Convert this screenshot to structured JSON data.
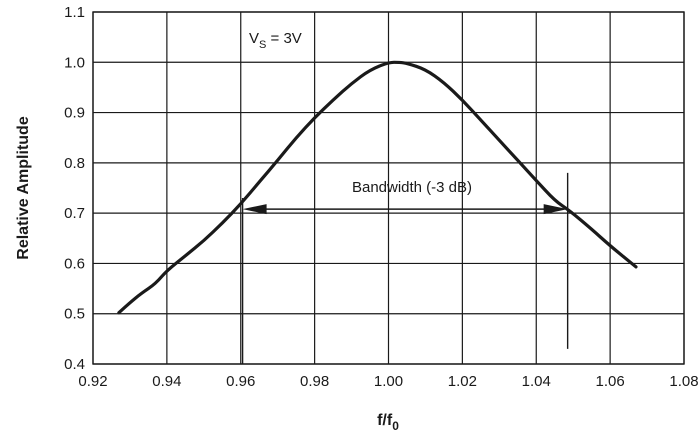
{
  "chart_data": {
    "type": "line",
    "title": "",
    "xlabel": "f/f",
    "xlabel_sub": "0",
    "ylabel": "Relative Amplitude",
    "xlim": [
      0.92,
      1.08
    ],
    "ylim": [
      0.4,
      1.1
    ],
    "x_ticks": [
      "0.92",
      "0.94",
      "0.96",
      "0.98",
      "1.00",
      "1.02",
      "1.04",
      "1.06",
      "1.08"
    ],
    "y_ticks": [
      "0.4",
      "0.5",
      "0.6",
      "0.7",
      "0.8",
      "0.9",
      "1.0",
      "1.1"
    ],
    "grid": true,
    "series": [
      {
        "x": [
          0.927,
          0.93,
          0.933,
          0.937,
          0.94,
          0.945,
          0.95,
          0.955,
          0.96,
          0.965,
          0.97,
          0.975,
          0.98,
          0.985,
          0.99,
          0.995,
          1.0,
          1.003,
          1.005,
          1.01,
          1.015,
          1.02,
          1.025,
          1.03,
          1.035,
          1.04,
          1.045,
          1.049,
          1.055,
          1.06,
          1.067
        ],
        "y": [
          0.502,
          0.522,
          0.54,
          0.56,
          0.586,
          0.615,
          0.645,
          0.68,
          0.718,
          0.762,
          0.805,
          0.85,
          0.89,
          0.925,
          0.958,
          0.985,
          1.0,
          1.0,
          0.998,
          0.986,
          0.96,
          0.925,
          0.885,
          0.845,
          0.805,
          0.765,
          0.725,
          0.705,
          0.668,
          0.635,
          0.593
        ]
      }
    ],
    "annotations": {
      "vs_label_main": "V",
      "vs_label_sub": "S",
      "vs_label_rest": " = 3V",
      "bandwidth_label": "Bandwidth (-3 dB)",
      "bandwidth_range": [
        0.9605,
        1.0485
      ],
      "bandwidth_level": 0.708,
      "bandwidth_marker_lines": [
        {
          "x": 0.9605,
          "y_from": 0.4,
          "y_to": 0.73
        },
        {
          "x": 1.0485,
          "y_from": 0.43,
          "y_to": 0.78
        }
      ]
    }
  }
}
